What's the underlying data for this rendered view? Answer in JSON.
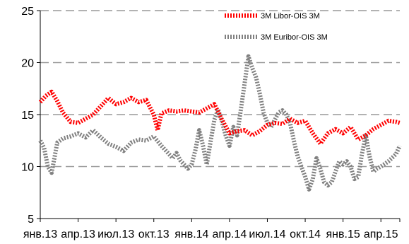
{
  "chart_data": {
    "type": "line",
    "title": "",
    "xlabel": "",
    "ylabel": "",
    "ylim": [
      5,
      25
    ],
    "yticks": [
      5,
      10,
      15,
      20,
      25
    ],
    "grid": "horizontal dashed",
    "legend_position": "top-right",
    "x_tick_labels": [
      "янв.13",
      "апр.13",
      "июл.13",
      "окт.13",
      "янв.14",
      "апр.14",
      "июл.14",
      "окт.14",
      "янв.15",
      "апр.15"
    ],
    "x_range": [
      0,
      9.5
    ],
    "series": [
      {
        "name": "3M Libor-OIS 3M",
        "color": "#ff0000",
        "style": "dotted",
        "x": [
          0,
          0.15,
          0.3,
          0.45,
          0.6,
          0.8,
          1.0,
          1.2,
          1.4,
          1.6,
          1.8,
          2.0,
          2.2,
          2.4,
          2.6,
          2.8,
          3.0,
          3.1,
          3.2,
          3.4,
          3.6,
          3.8,
          4.0,
          4.2,
          4.4,
          4.6,
          4.8,
          5.0,
          5.2,
          5.4,
          5.6,
          5.8,
          6.0,
          6.2,
          6.4,
          6.6,
          6.8,
          7.0,
          7.2,
          7.4,
          7.6,
          7.8,
          8.0,
          8.2,
          8.4,
          8.6,
          8.8,
          9.0,
          9.2,
          9.4,
          9.5
        ],
        "values": [
          16.2,
          16.8,
          17.2,
          16.3,
          15.2,
          14.3,
          14.2,
          14.6,
          15.0,
          15.8,
          16.6,
          16.0,
          16.2,
          16.6,
          16.2,
          16.4,
          15.0,
          13.5,
          15.1,
          15.4,
          15.3,
          15.4,
          15.3,
          15.2,
          15.6,
          16.0,
          14.5,
          13.2,
          13.4,
          13.5,
          13.0,
          13.4,
          14.0,
          14.2,
          14.1,
          14.6,
          14.2,
          14.4,
          13.2,
          12.2,
          13.2,
          13.6,
          13.2,
          13.8,
          12.6,
          13.0,
          13.6,
          14.0,
          14.4,
          14.3,
          14.2
        ]
      },
      {
        "name": "3M Euribor-OIS 3M",
        "color": "#808080",
        "style": "dotted",
        "x": [
          0,
          0.1,
          0.2,
          0.3,
          0.45,
          0.6,
          0.8,
          1.0,
          1.2,
          1.4,
          1.6,
          1.8,
          2.0,
          2.2,
          2.4,
          2.6,
          2.8,
          3.0,
          3.2,
          3.4,
          3.5,
          3.6,
          3.7,
          3.8,
          3.9,
          4.0,
          4.1,
          4.2,
          4.3,
          4.4,
          4.5,
          4.6,
          4.7,
          4.8,
          4.9,
          5.0,
          5.1,
          5.2,
          5.3,
          5.4,
          5.5,
          5.6,
          5.7,
          5.8,
          5.9,
          6.0,
          6.1,
          6.2,
          6.3,
          6.4,
          6.5,
          6.6,
          6.7,
          6.8,
          6.9,
          7.0,
          7.1,
          7.2,
          7.3,
          7.4,
          7.5,
          7.6,
          7.7,
          7.8,
          7.9,
          8.0,
          8.1,
          8.2,
          8.3,
          8.4,
          8.5,
          8.6,
          8.7,
          8.8,
          8.9,
          9.0,
          9.2,
          9.4,
          9.5
        ],
        "values": [
          12.5,
          11.8,
          10.0,
          9.4,
          12.3,
          12.7,
          12.9,
          13.2,
          12.8,
          13.5,
          12.8,
          12.2,
          11.9,
          11.5,
          12.3,
          12.6,
          12.5,
          12.9,
          12.0,
          11.2,
          10.8,
          11.3,
          10.6,
          10.2,
          9.8,
          10.2,
          11.6,
          13.5,
          12.0,
          10.2,
          12.4,
          14.5,
          15.5,
          14.3,
          13.0,
          12.0,
          13.8,
          13.0,
          15.5,
          18.0,
          20.6,
          19.5,
          18.6,
          17.0,
          15.2,
          14.2,
          13.8,
          14.5,
          15.2,
          15.4,
          15.0,
          14.2,
          12.5,
          11.0,
          10.0,
          9.0,
          7.8,
          8.8,
          10.8,
          9.8,
          8.5,
          8.2,
          8.5,
          9.5,
          10.5,
          10.2,
          10.5,
          10.0,
          8.8,
          9.0,
          11.2,
          13.0,
          11.0,
          9.5,
          9.8,
          10.0,
          10.5,
          11.2,
          12.0
        ]
      }
    ]
  }
}
